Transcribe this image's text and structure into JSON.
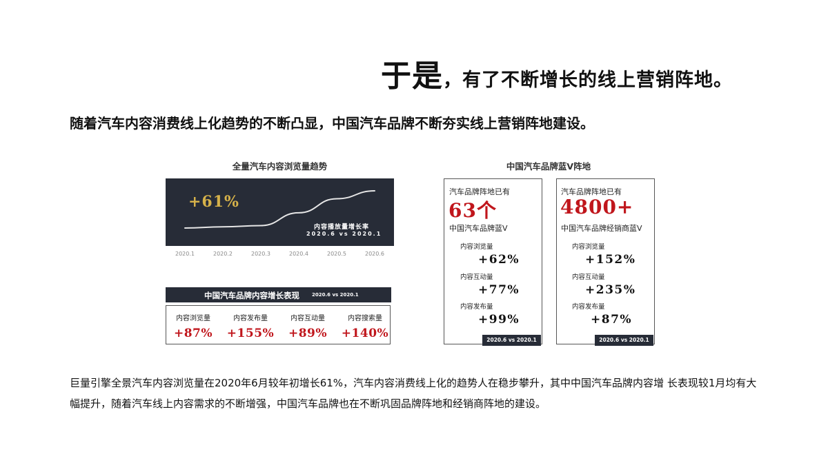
{
  "heading": {
    "big": "于是",
    "rest": "，有了不断增长的线上营销阵地。"
  },
  "subheading": "随着汽车内容消费线上化趋势的不断凸显，中国汽车品牌不断夯实线上营销阵地建设。",
  "trend_chart": {
    "title": "全量汽车内容浏览量趋势",
    "highlight": "+61%",
    "caption_line1": "内容播放量增长率",
    "caption_line2": "2020.6 vs 2020.1",
    "line_color": "#e6e6e6",
    "bg_color": "#272c37"
  },
  "growth_table": {
    "title": "中国汽车品牌内容增长表现",
    "period": "2020.6 vs 2020.1"
  },
  "card_section_title": "中国汽车品牌蓝V阵地",
  "cards": [
    {
      "line1": "汽车品牌阵地已有",
      "big": "63个",
      "sub": "中国汽车品牌蓝V",
      "footer": "2020.6 vs 2020.1"
    },
    {
      "line1": "汽车品牌阵地已有",
      "big": "4800+",
      "sub": "中国汽车品牌经销商蓝V",
      "footer": "2020.6 vs 2020.1"
    }
  ],
  "paragraph": "巨量引擎全景汽车内容浏览量在2020年6月较年初增长61%，汽车内容消费线上化的趋势人在稳步攀升，其中中国汽车品牌内容增 长表现较1月均有大幅提升，随着汽车线上内容需求的不断增强，中国汽车品牌也在不断巩固品牌阵地和经销商阵地的建设。",
  "colors": {
    "accent_red": "#c0161c",
    "gold": "#d6b24a",
    "dark_panel": "#272c37"
  },
  "chart_data": [
    {
      "type": "line",
      "title": "全量汽车内容浏览量趋势",
      "x": [
        "2020.1",
        "2020.2",
        "2020.3",
        "2020.4",
        "2020.5",
        "2020.6"
      ],
      "series": [
        {
          "values": [
            100,
            102,
            104,
            125,
            148,
            161
          ]
        }
      ],
      "annotation": "+61%",
      "grid": false
    },
    {
      "type": "table",
      "title": "中国汽车品牌内容增长表现",
      "period": "2020.6 vs 2020.1",
      "categories": [
        "内容浏览量",
        "内容发布量",
        "内容互动量",
        "内容搜索量"
      ],
      "values": [
        "+87%",
        "+155%",
        "+89%",
        "+140%"
      ]
    },
    {
      "type": "table",
      "title": "中国汽车品牌蓝V",
      "categories": [
        "内容浏览量",
        "内容互动量",
        "内容发布量"
      ],
      "values": [
        "+62%",
        "+77%",
        "+99%"
      ]
    },
    {
      "type": "table",
      "title": "中国汽车品牌经销商蓝V",
      "categories": [
        "内容浏览量",
        "内容互动量",
        "内容发布量"
      ],
      "values": [
        "+152%",
        "+235%",
        "+87%"
      ]
    }
  ]
}
